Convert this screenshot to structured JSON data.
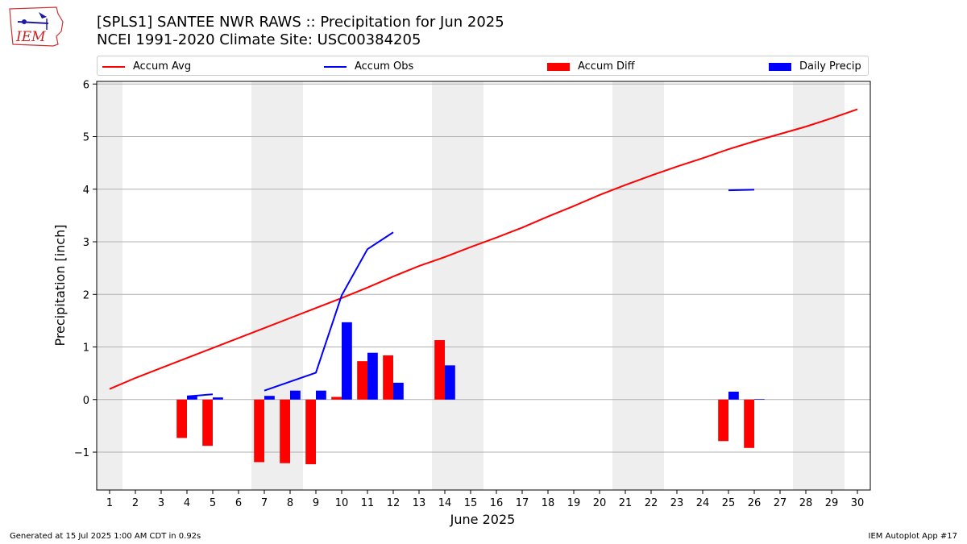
{
  "header": {
    "title_line1": "[SPLS1] SANTEE NWR RAWS :: Precipitation for Jun 2025",
    "title_line2": "NCEI 1991-2020 Climate Site: USC00384205",
    "logo_text": "IEM"
  },
  "legend": {
    "items": [
      {
        "label": "Accum Avg",
        "kind": "line",
        "color": "#ff0000"
      },
      {
        "label": "Accum Obs",
        "kind": "line",
        "color": "#0000ff"
      },
      {
        "label": "Accum Diff",
        "kind": "bar",
        "color": "#ff0000"
      },
      {
        "label": "Daily Precip",
        "kind": "bar",
        "color": "#0000ff"
      }
    ]
  },
  "footer": {
    "left": "Generated at 15 Jul 2025 1:00 AM CDT in 0.92s",
    "right": "IEM Autoplot App #17"
  },
  "chart_data": {
    "type": "bar",
    "xlabel": "June 2025",
    "ylabel": "Precipitation [inch]",
    "xlim": [
      0.5,
      30.5
    ],
    "ylim": [
      -1.72,
      6.05
    ],
    "days": [
      1,
      2,
      3,
      4,
      5,
      6,
      7,
      8,
      9,
      10,
      11,
      12,
      13,
      14,
      15,
      16,
      17,
      18,
      19,
      20,
      21,
      22,
      23,
      24,
      25,
      26,
      27,
      28,
      29,
      30
    ],
    "yticks": [
      -1,
      0,
      1,
      2,
      3,
      4,
      5,
      6
    ],
    "ytick_labels": [
      "−1",
      "0",
      "1",
      "2",
      "3",
      "4",
      "5",
      "6"
    ],
    "weekend_days": [
      1,
      7,
      8,
      14,
      15,
      21,
      22,
      28,
      29
    ],
    "grid": "horizontal",
    "colors": {
      "avg": "#ff0000",
      "obs": "#0000ff",
      "diff": "#ff0000",
      "daily": "#0000ff",
      "weekend": "#eeeeee"
    },
    "accum_avg": [
      0.2,
      0.41,
      0.6,
      0.79,
      0.98,
      1.17,
      1.36,
      1.55,
      1.74,
      1.93,
      2.13,
      2.34,
      2.54,
      2.71,
      2.9,
      3.08,
      3.27,
      3.48,
      3.68,
      3.89,
      4.08,
      4.26,
      4.43,
      4.59,
      4.76,
      4.91,
      5.05,
      5.19,
      5.35,
      5.52
    ],
    "accum_obs_segments": [
      {
        "days": [
          4,
          5
        ],
        "values": [
          0.06,
          0.1
        ]
      },
      {
        "days": [
          7,
          8,
          9,
          10,
          11,
          12
        ],
        "values": [
          0.17,
          0.34,
          0.51,
          1.98,
          2.86,
          3.18
        ]
      },
      {
        "days": [
          25,
          26
        ],
        "values": [
          3.98,
          3.99
        ]
      }
    ],
    "accum_diff": {
      "days": [
        4,
        5,
        7,
        8,
        9,
        10,
        11,
        12,
        14,
        25,
        26
      ],
      "values": [
        -0.73,
        -0.88,
        -1.19,
        -1.21,
        -1.23,
        0.05,
        0.73,
        0.84,
        1.13,
        -0.79,
        -0.92
      ]
    },
    "daily_precip": {
      "days": [
        4,
        5,
        7,
        8,
        9,
        10,
        11,
        12,
        14,
        25,
        26
      ],
      "values": [
        0.07,
        0.04,
        0.07,
        0.17,
        0.17,
        1.47,
        0.89,
        0.32,
        0.65,
        0.15,
        0.01
      ]
    }
  }
}
